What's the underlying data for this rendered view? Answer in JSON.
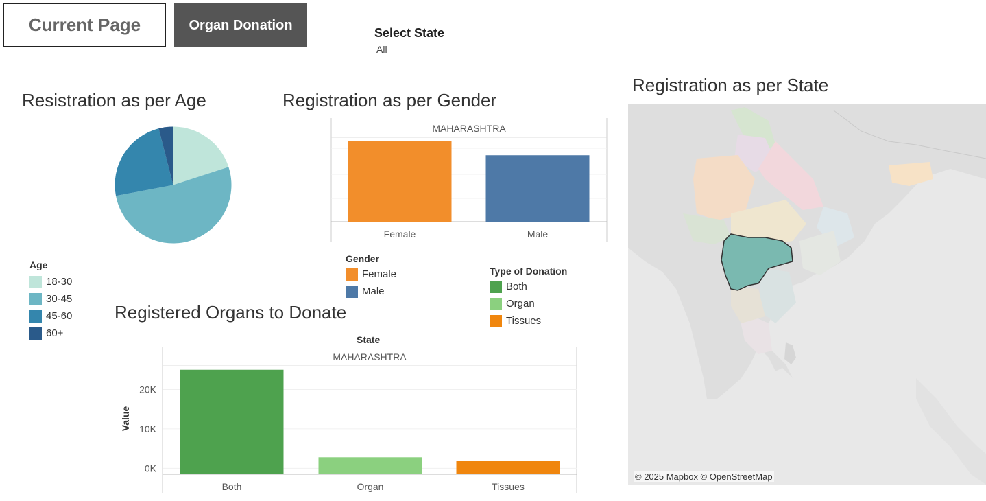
{
  "nav": {
    "current_page_label": "Current Page",
    "organ_donation_label": "Organ Donation"
  },
  "filter": {
    "label": "Select State",
    "value": "All"
  },
  "age_chart": {
    "title": "Resistration as per Age",
    "legend_title": "Age",
    "legend": [
      {
        "label": "18-30",
        "color": "#bfe5da"
      },
      {
        "label": "30-45",
        "color": "#6db6c4"
      },
      {
        "label": "45-60",
        "color": "#3486ad"
      },
      {
        "label": "60+",
        "color": "#2a5a8a"
      }
    ]
  },
  "gender_chart": {
    "title": "Registration as per Gender",
    "legend_title": "Gender",
    "legend": [
      {
        "label": "Female",
        "color": "#f28e2b"
      },
      {
        "label": "Male",
        "color": "#4e79a7"
      }
    ]
  },
  "donation_type_legend": {
    "title": "Type of Donation",
    "items": [
      {
        "label": "Both",
        "color": "#4ea24e"
      },
      {
        "label": "Organ",
        "color": "#8bd07f"
      },
      {
        "label": "Tissues",
        "color": "#f0860e"
      }
    ]
  },
  "organs_chart": {
    "title": "Registered Organs to Donate",
    "column_header": "State"
  },
  "state_map": {
    "title": "Registration as per State",
    "credit": "© 2025 Mapbox © OpenStreetMap",
    "highlight_color": "#7ab9b0"
  },
  "chart_data": [
    {
      "type": "pie",
      "categories": [
        "18-30",
        "30-45",
        "45-60",
        "60+"
      ],
      "values": [
        20,
        52,
        24,
        4
      ]
    },
    {
      "type": "bar",
      "panel": "MAHARASHTRA",
      "categories": [
        "Female",
        "Male"
      ],
      "values": [
        1.0,
        0.82
      ],
      "colors": [
        "#f28e2b",
        "#4e79a7"
      ]
    },
    {
      "type": "bar",
      "panel": "MAHARASHTRA",
      "categories": [
        "Both",
        "Organ",
        "Tissues"
      ],
      "values": [
        25000,
        2800,
        1900
      ],
      "colors": [
        "#4ea24e",
        "#8bd07f",
        "#f0860e"
      ],
      "ylabel": "Value",
      "yticks": [
        {
          "v": 20000,
          "label": "20K"
        },
        {
          "v": 10000,
          "label": "10K"
        },
        {
          "v": 0,
          "label": "0K"
        }
      ],
      "ylim": [
        -1500,
        26000
      ]
    }
  ]
}
